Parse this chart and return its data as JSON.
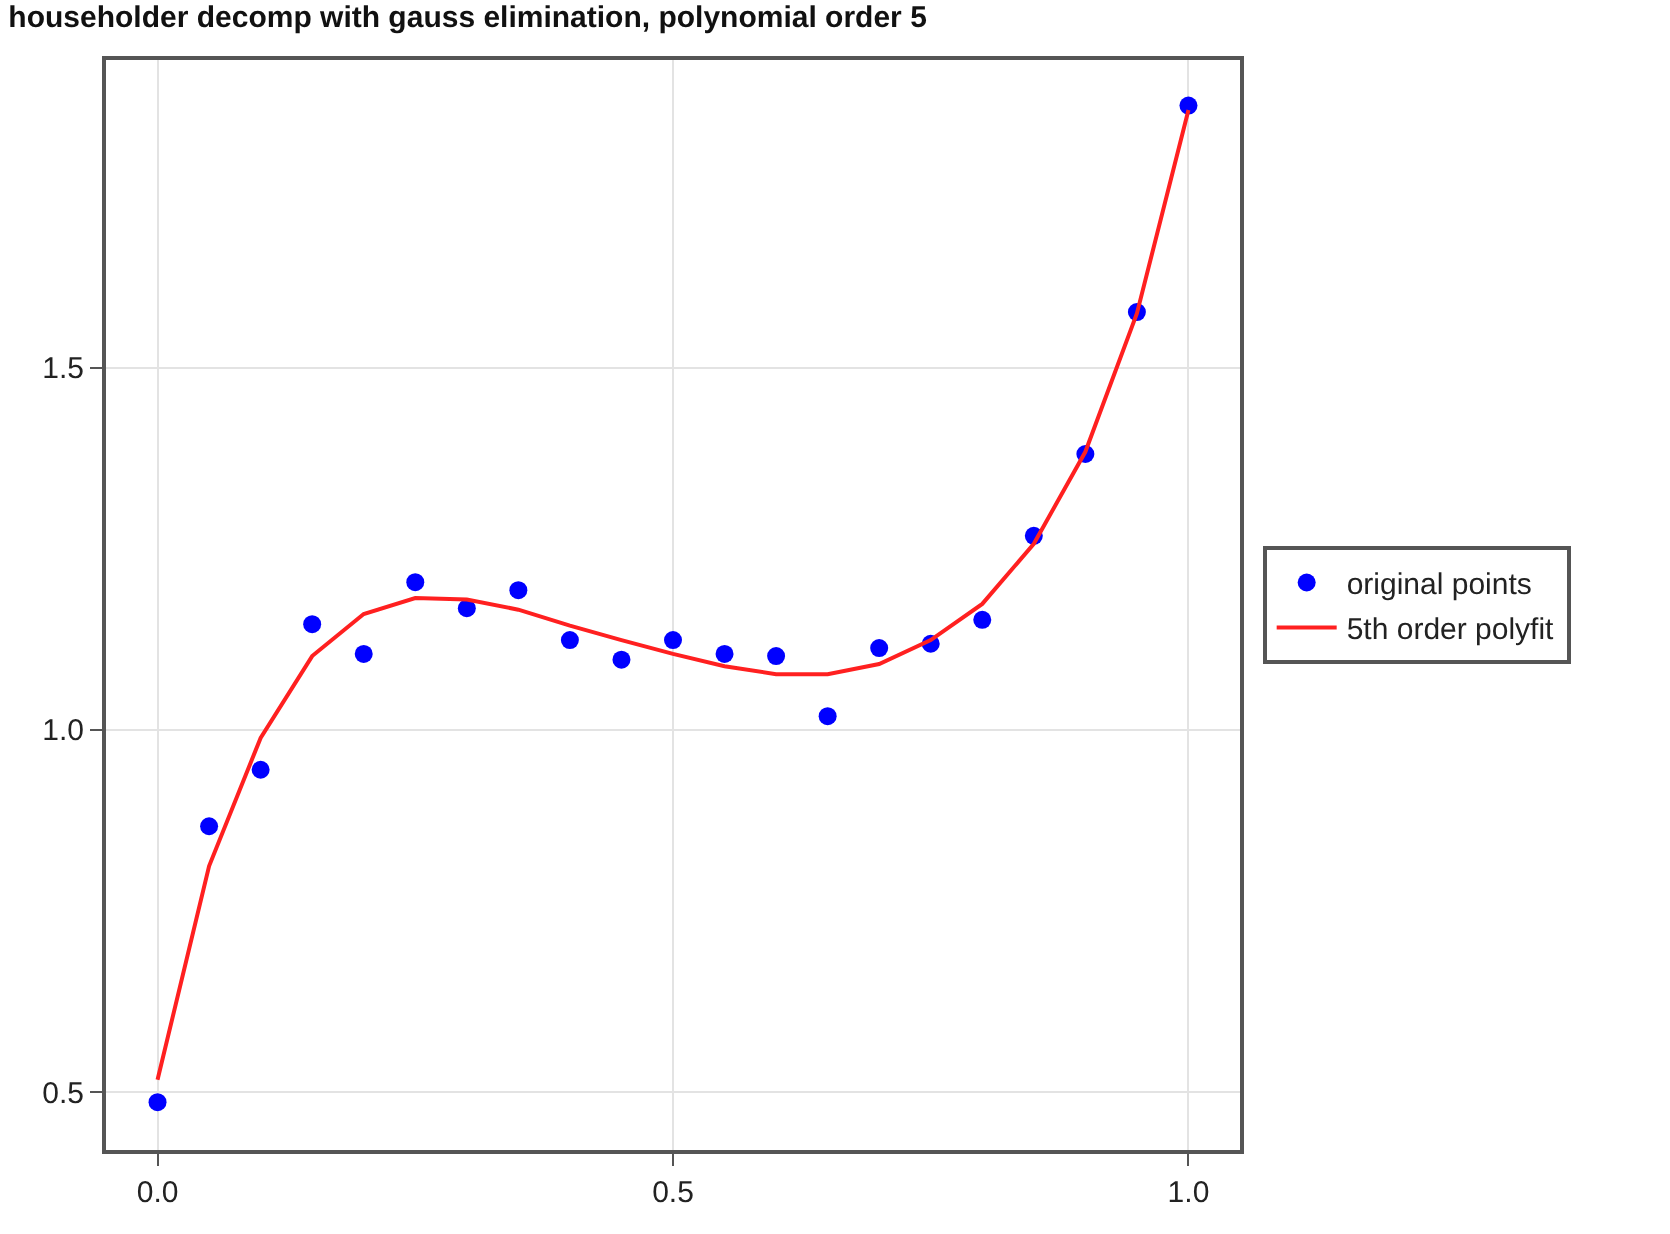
{
  "chart_data": {
    "type": "scatter",
    "title": "householder decomp with gauss elimination, polynomial order 5",
    "x": [
      0,
      0.05,
      0.1,
      0.15,
      0.2,
      0.25,
      0.3,
      0.35,
      0.4,
      0.45,
      0.5,
      0.55,
      0.6,
      0.65,
      0.7,
      0.75,
      0.8,
      0.85,
      0.9,
      0.95,
      1.0
    ],
    "series": [
      {
        "name": "original points",
        "color": "#0000ff",
        "marker": "circle",
        "values": [
          0.486,
          0.867,
          0.945,
          1.146,
          1.105,
          1.204,
          1.168,
          1.193,
          1.124,
          1.097,
          1.124,
          1.105,
          1.102,
          1.019,
          1.113,
          1.119,
          1.152,
          1.268,
          1.381,
          1.577,
          1.862
        ]
      },
      {
        "name": "5th order polyfit",
        "type": "line",
        "color": "#ff2020",
        "marker": "none",
        "values": [
          0.517,
          0.812,
          0.989,
          1.102,
          1.16,
          1.182,
          1.18,
          1.166,
          1.144,
          1.124,
          1.105,
          1.088,
          1.077,
          1.077,
          1.091,
          1.124,
          1.174,
          1.257,
          1.384,
          1.575,
          1.856
        ]
      }
    ],
    "xlim": [
      -0.05,
      1.05
    ],
    "xticks": [
      {
        "value": 0,
        "label": "0.0"
      },
      0.5,
      {
        "value": 1,
        "label": "1.0"
      }
    ],
    "ylim": [
      0.42,
      1.925
    ],
    "yticks": [
      0.5,
      {
        "value": 1,
        "label": "1.0"
      },
      1.5
    ],
    "grid": true,
    "legend": "right"
  }
}
